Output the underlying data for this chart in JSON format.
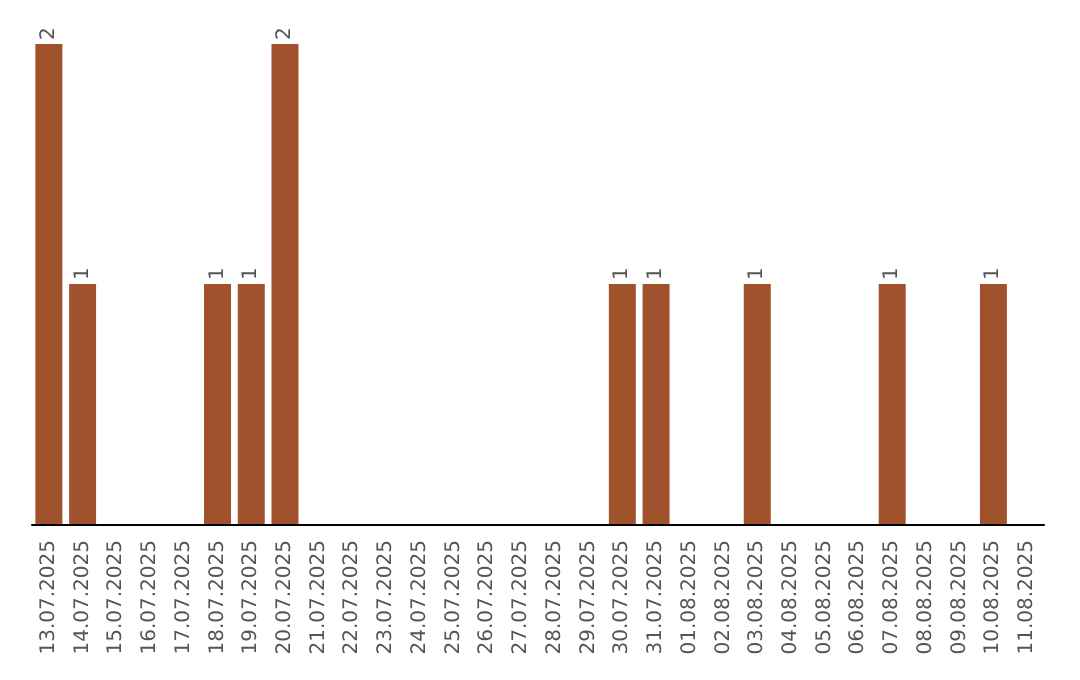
{
  "chart_data": {
    "type": "bar",
    "categories": [
      "13.07.2025",
      "14.07.2025",
      "15.07.2025",
      "16.07.2025",
      "17.07.2025",
      "18.07.2025",
      "19.07.2025",
      "20.07.2025",
      "21.07.2025",
      "22.07.2025",
      "23.07.2025",
      "24.07.2025",
      "25.07.2025",
      "26.07.2025",
      "27.07.2025",
      "28.07.2025",
      "29.07.2025",
      "30.07.2025",
      "31.07.2025",
      "01.08.2025",
      "02.08.2025",
      "03.08.2025",
      "04.08.2025",
      "05.08.2025",
      "06.08.2025",
      "07.08.2025",
      "08.08.2025",
      "09.08.2025",
      "10.08.2025",
      "11.08.2025"
    ],
    "values": [
      2,
      1,
      0,
      0,
      0,
      1,
      1,
      2,
      0,
      0,
      0,
      0,
      0,
      0,
      0,
      0,
      0,
      1,
      1,
      0,
      0,
      1,
      0,
      0,
      0,
      1,
      0,
      0,
      1,
      0
    ],
    "value_labels": [
      "2",
      "1",
      null,
      null,
      null,
      "1",
      "1",
      "2",
      null,
      null,
      null,
      null,
      null,
      null,
      null,
      null,
      null,
      "1",
      "1",
      null,
      null,
      "1",
      null,
      null,
      null,
      "1",
      null,
      null,
      "1",
      null
    ],
    "color": "#a0522d"
  }
}
